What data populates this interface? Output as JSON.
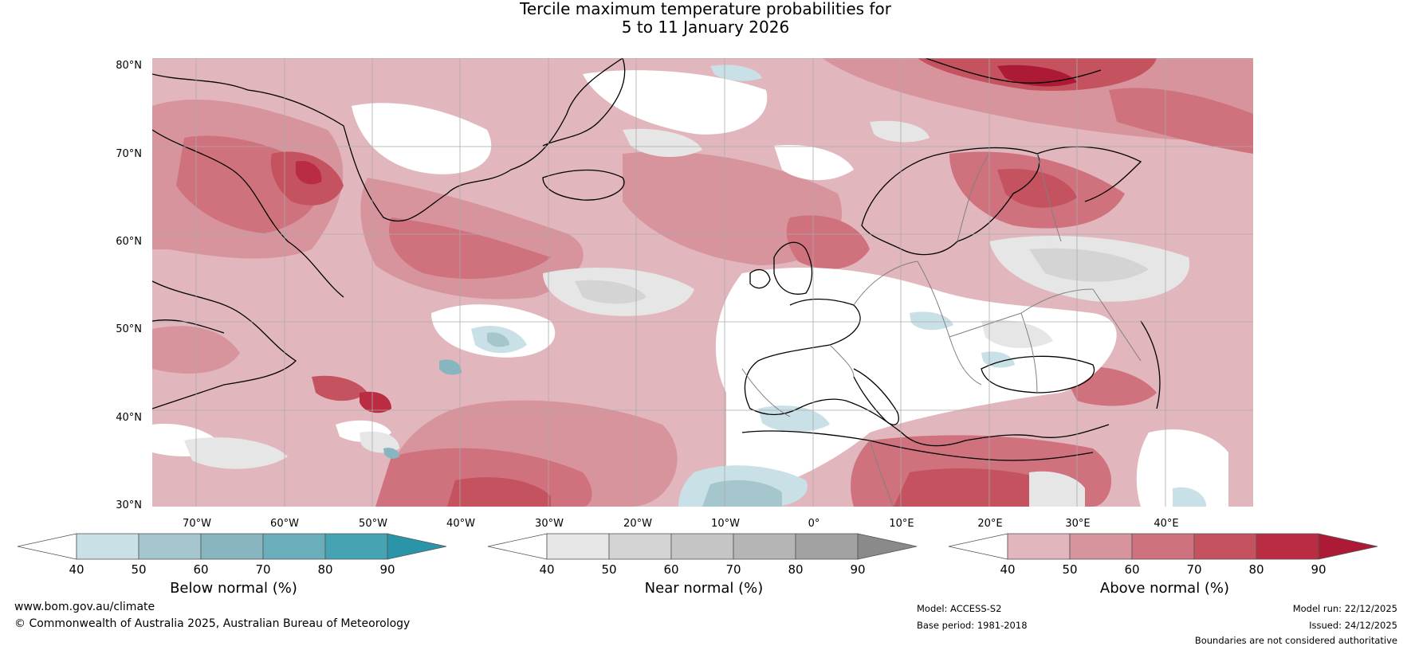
{
  "title": {
    "line1": "Tercile maximum temperature probabilities for",
    "line2": "5 to 11 January 2026"
  },
  "latitudes": [
    "80°N",
    "70°N",
    "60°N",
    "50°N",
    "40°N",
    "30°N"
  ],
  "longitudes": [
    "70°W",
    "60°W",
    "50°W",
    "40°W",
    "30°W",
    "20°W",
    "10°W",
    "0°",
    "10°E",
    "20°E",
    "30°E",
    "40°E"
  ],
  "legends": {
    "below": {
      "title": "Below normal (%)",
      "ticks": [
        "40",
        "50",
        "60",
        "70",
        "80",
        "90"
      ],
      "colors": [
        "#ffffff",
        "#c8e0e6",
        "#a6c6cd",
        "#87b6c0",
        "#6aaebc",
        "#46a3b4",
        "#2a95a8"
      ]
    },
    "near": {
      "title": "Near normal (%)",
      "ticks": [
        "40",
        "50",
        "60",
        "70",
        "80",
        "90"
      ],
      "colors": [
        "#ffffff",
        "#e6e6e6",
        "#d4d4d4",
        "#c5c5c5",
        "#b5b5b5",
        "#a2a2a2",
        "#8a8a8a"
      ]
    },
    "above": {
      "title": "Above normal (%)",
      "ticks": [
        "40",
        "50",
        "60",
        "70",
        "80",
        "90"
      ],
      "colors": [
        "#ffffff",
        "#e2b6bd",
        "#d8949d",
        "#cf727e",
        "#c4525f",
        "#b92c41",
        "#ac1a35"
      ]
    }
  },
  "footer": {
    "website": "www.bom.gov.au/climate",
    "copyright": "© Commonwealth of Australia 2025, Australian Bureau of Meteorology",
    "model": "Model: ACCESS-S2",
    "base_period": "Base period: 1981-2018",
    "model_run": "Model run: 22/12/2025",
    "issued": "Issued: 24/12/2025",
    "disclaimer": "Boundaries are not considered authoritative"
  },
  "colors": {
    "ocean_base": "#e2b6bd",
    "above_light": "#e2b6bd",
    "above_mid": "#d8949d",
    "above_strong": "#cf727e",
    "above_stronger": "#c4525f",
    "above_max": "#b92c41",
    "near_light": "#e6e6e6",
    "near_mid": "#d4d4d4",
    "below_light": "#c8e0e6",
    "white": "#ffffff",
    "grid": "#aaaaaa",
    "coast": "#000000",
    "border": "#808080"
  }
}
